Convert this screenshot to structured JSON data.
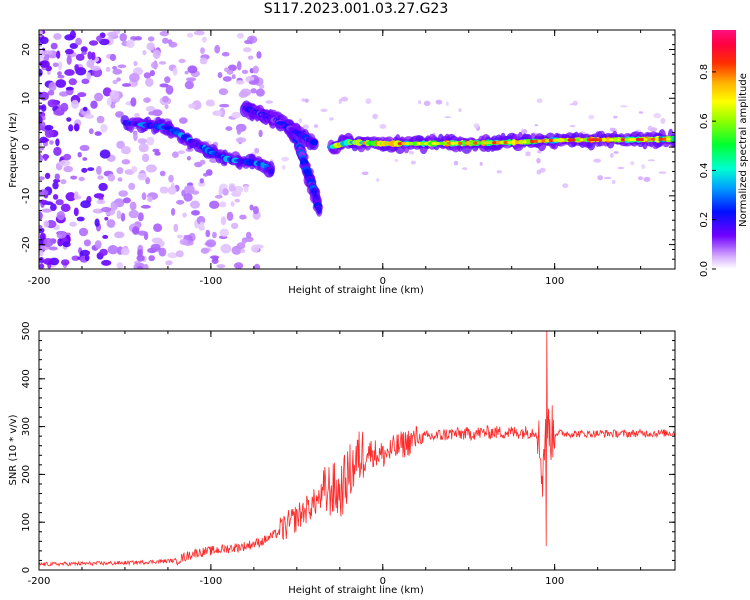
{
  "title": "S117.2023.001.03.27.G23",
  "colors": {
    "snr_line": "#ff2a2a",
    "frame": "#000000"
  },
  "chart_data": [
    {
      "type": "heatmap",
      "xlabel": "Height of straight line (km)",
      "ylabel": "Frequency (Hz)",
      "xlim": [
        -200,
        170
      ],
      "ylim": [
        -25,
        24
      ],
      "x_ticks": [
        -200,
        -100,
        0,
        100
      ],
      "x_tick_labels": [
        "-200",
        "-100",
        "0",
        "100"
      ],
      "y_ticks": [
        -20,
        -10,
        0,
        10,
        20
      ],
      "y_tick_labels": [
        "-20",
        "-10",
        "0",
        "10",
        "20"
      ],
      "colorbar": {
        "label": "Normalized spectral amplitude",
        "range": [
          0,
          0.97
        ],
        "ticks": [
          0.0,
          0.2,
          0.4,
          0.6,
          0.8
        ],
        "tick_labels": [
          "0.0",
          "0.2",
          "0.4",
          "0.6",
          "0.8"
        ]
      },
      "ridges": [
        {
          "name": "main-ridge",
          "x": [
            -150,
            -125,
            -110,
            -100,
            -90,
            -80,
            -70,
            -65
          ],
          "y": [
            5,
            4,
            1,
            -1,
            -2.5,
            -3,
            -3.5,
            -5
          ],
          "amplitude": 0.3
        },
        {
          "name": "secondary-ridge",
          "x": [
            -55,
            -50,
            -45,
            -40,
            -37
          ],
          "y": [
            4,
            2,
            -4,
            -9,
            -13
          ],
          "amplitude": 0.25
        },
        {
          "name": "upper-branch",
          "x": [
            -80,
            -65,
            -50,
            -40
          ],
          "y": [
            8,
            6,
            3,
            1
          ],
          "amplitude": 0.22
        },
        {
          "name": "carrier",
          "x": [
            -30,
            -20,
            0,
            20,
            50,
            80,
            100,
            120,
            140,
            160,
            170
          ],
          "y": [
            0,
            1,
            0.7,
            0.7,
            0.8,
            1,
            1.4,
            1.5,
            1.5,
            1.6,
            1.7
          ],
          "amplitude": 0.7
        }
      ]
    },
    {
      "type": "line",
      "xlabel": "Height of straight line (km)",
      "ylabel": "SNR (10 * v/v)",
      "xlim": [
        -200,
        170
      ],
      "ylim": [
        0,
        500
      ],
      "x_ticks": [
        -200,
        -100,
        0,
        100
      ],
      "x_tick_labels": [
        "-200",
        "-100",
        "0",
        "100"
      ],
      "y_ticks": [
        0,
        100,
        200,
        300,
        400,
        500
      ],
      "y_tick_labels": [
        "0",
        "100",
        "200",
        "300",
        "400",
        "500"
      ],
      "series": [
        {
          "x": [
            -200,
            -180,
            -160,
            -140,
            -120,
            -110,
            -100,
            -90,
            -80,
            -70,
            -60,
            -50,
            -40,
            -30,
            -25,
            -20,
            -15,
            -10,
            0,
            10,
            20,
            30,
            40,
            50,
            60,
            70,
            80,
            90,
            93,
            95,
            97,
            100,
            110,
            120,
            130,
            140,
            150,
            160,
            170
          ],
          "y": [
            12,
            13,
            14,
            16,
            20,
            35,
            40,
            45,
            50,
            60,
            80,
            110,
            140,
            170,
            160,
            200,
            230,
            250,
            240,
            260,
            275,
            280,
            285,
            285,
            288,
            288,
            288,
            290,
            200,
            320,
            285,
            287,
            285,
            285,
            286,
            285,
            286,
            286,
            287
          ]
        }
      ]
    }
  ]
}
